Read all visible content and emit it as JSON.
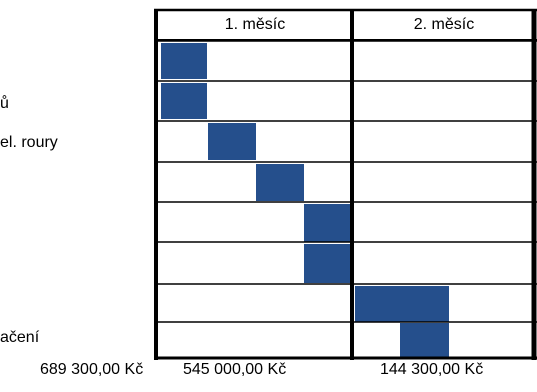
{
  "header": {
    "months": [
      "1. měsíc",
      "2. měsíc"
    ]
  },
  "tasks": [
    {
      "label": ""
    },
    {
      "label": "ů"
    },
    {
      "label": "el. roury"
    },
    {
      "label": ""
    },
    {
      "label": ""
    },
    {
      "label": ""
    },
    {
      "label": ""
    },
    {
      "label": "ačení"
    }
  ],
  "totals": {
    "overall": "689 300,00 Kč",
    "month1": "545 000,00 Kč",
    "month2": "144 300,00 Kč"
  },
  "colors": {
    "bar": "#254f8c",
    "grid": "#000000"
  }
}
